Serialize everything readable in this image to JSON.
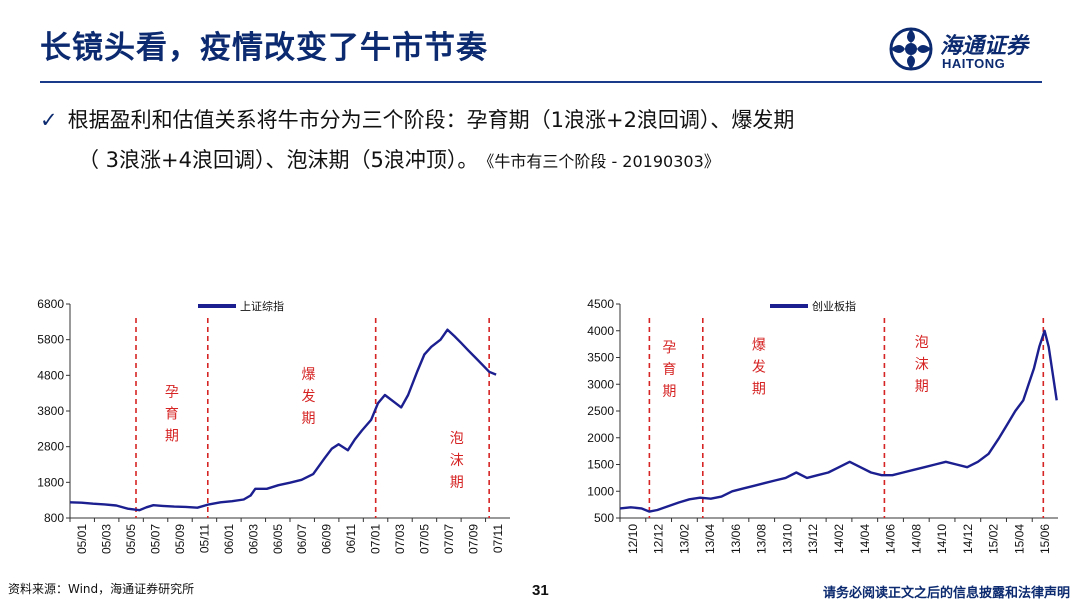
{
  "page": {
    "title": "长镜头看，疫情改变了牛市节奏",
    "logo_cn": "海通证券",
    "logo_en": "HAITONG",
    "bullet_check": "✓",
    "bullet_line1": "根据盈利和估值关系将牛市分为三个阶段：孕育期（1浪涨+2浪回调）、爆发期",
    "bullet_line2": "（ 3浪涨+4浪回调）、泡沫期（5浪冲顶）。",
    "bullet_cite": "《牛市有三个阶段 - 20190303》",
    "footer_source": "资料来源：Wind，海通证券研究所",
    "footer_page": "31",
    "footer_disclaimer": "请务必阅读正文之后的信息披露和法律声明"
  },
  "colors": {
    "title": "#0b2a6f",
    "line": "#1b1f8f",
    "phase": "#d62424",
    "rule": "#1a3a8a"
  },
  "chart_data": [
    {
      "type": "line",
      "title": "",
      "series_name": "上证综指",
      "ylim": [
        800,
        6800
      ],
      "yticks": [
        "6800",
        "5800",
        "4800",
        "3800",
        "2800",
        "1800",
        "800"
      ],
      "xticks": [
        "05/01",
        "05/03",
        "05/05",
        "05/07",
        "05/09",
        "05/11",
        "06/01",
        "06/03",
        "06/05",
        "06/07",
        "06/09",
        "06/11",
        "07/01",
        "07/03",
        "07/05",
        "07/07",
        "07/09",
        "07/11"
      ],
      "x_range": [
        0,
        19
      ],
      "x": [
        0.0,
        0.5,
        1.0,
        1.5,
        2.0,
        2.5,
        3.0,
        3.3,
        3.6,
        4.0,
        4.5,
        5.0,
        5.5,
        6.0,
        6.5,
        7.0,
        7.5,
        7.8,
        8.0,
        8.5,
        9.0,
        9.5,
        10.0,
        10.5,
        11.0,
        11.3,
        11.6,
        12.0,
        12.3,
        12.6,
        13.0,
        13.3,
        13.6,
        14.0,
        14.3,
        14.6,
        15.0,
        15.3,
        15.6,
        16.0,
        16.3,
        16.6,
        16.9,
        17.2,
        17.5,
        17.8,
        18.1,
        18.4
      ],
      "values": [
        1240,
        1230,
        1200,
        1180,
        1150,
        1060,
        1020,
        1100,
        1160,
        1140,
        1120,
        1110,
        1090,
        1180,
        1240,
        1270,
        1320,
        1430,
        1620,
        1620,
        1720,
        1790,
        1870,
        2030,
        2480,
        2740,
        2870,
        2700,
        3000,
        3250,
        3550,
        4020,
        4250,
        4050,
        3900,
        4250,
        4920,
        5380,
        5600,
        5800,
        6080,
        5900,
        5700,
        5500,
        5300,
        5100,
        4900,
        4820
      ],
      "phase_lines_x": [
        2.85,
        5.95,
        13.2,
        18.1
      ],
      "phases": [
        {
          "label": [
            "孕",
            "育",
            "期"
          ],
          "x": 4.4,
          "y": 4200
        },
        {
          "label": [
            "爆",
            "发",
            "期"
          ],
          "x": 10.3,
          "y": 4700
        },
        {
          "label": [
            "泡",
            "沫",
            "期"
          ],
          "x": 16.7,
          "y": 2900
        }
      ]
    },
    {
      "type": "line",
      "title": "",
      "series_name": "创业板指",
      "ylim": [
        500,
        4500
      ],
      "yticks": [
        "4500",
        "4000",
        "3500",
        "3000",
        "2500",
        "2000",
        "1500",
        "1000",
        "500"
      ],
      "xticks": [
        "12/10",
        "12/12",
        "13/02",
        "13/04",
        "13/06",
        "13/08",
        "13/10",
        "13/12",
        "14/02",
        "14/04",
        "14/06",
        "14/08",
        "14/10",
        "14/12",
        "15/02",
        "15/04",
        "15/06"
      ],
      "x_range": [
        0,
        16.4
      ],
      "x": [
        0.0,
        0.4,
        0.8,
        1.1,
        1.4,
        1.8,
        2.2,
        2.6,
        3.0,
        3.4,
        3.8,
        4.2,
        4.6,
        5.0,
        5.4,
        5.8,
        6.2,
        6.6,
        7.0,
        7.4,
        7.8,
        8.2,
        8.6,
        9.0,
        9.4,
        9.8,
        10.2,
        10.6,
        11.0,
        11.4,
        11.8,
        12.2,
        12.6,
        13.0,
        13.4,
        13.8,
        14.2,
        14.5,
        14.8,
        15.1,
        15.3,
        15.5,
        15.7,
        15.9,
        16.05,
        16.2,
        16.35
      ],
      "values": [
        680,
        700,
        680,
        620,
        650,
        720,
        790,
        850,
        880,
        860,
        900,
        1000,
        1050,
        1100,
        1150,
        1200,
        1250,
        1350,
        1250,
        1300,
        1350,
        1450,
        1550,
        1450,
        1350,
        1300,
        1300,
        1350,
        1400,
        1450,
        1500,
        1550,
        1500,
        1450,
        1550,
        1700,
        2000,
        2250,
        2500,
        2700,
        3000,
        3300,
        3700,
        4000,
        3700,
        3200,
        2700
      ],
      "phase_lines_x": [
        1.1,
        3.1,
        9.9,
        15.85
      ],
      "phases": [
        {
          "label": [
            "孕",
            "育",
            "期"
          ],
          "x": 1.85,
          "y": 3600
        },
        {
          "label": [
            "爆",
            "发",
            "期"
          ],
          "x": 5.2,
          "y": 3650
        },
        {
          "label": [
            "泡",
            "沫",
            "期"
          ],
          "x": 11.3,
          "y": 3700
        }
      ]
    }
  ]
}
